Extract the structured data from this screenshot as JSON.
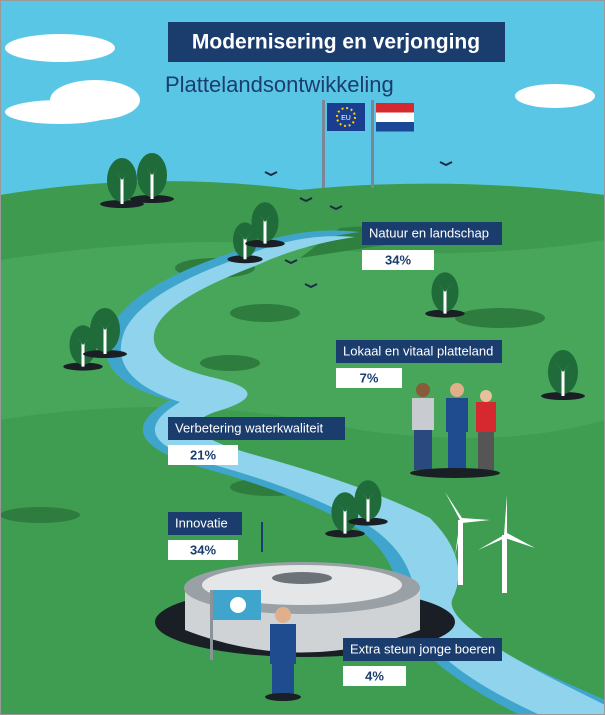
{
  "header": {
    "title": "Modernisering en verjonging",
    "subtitle": "Plattelandsontwikkeling",
    "flag_text": "EU"
  },
  "items": [
    {
      "label": "Natuur en landschap",
      "value": "34%"
    },
    {
      "label": "Lokaal en vitaal platteland",
      "value": "7%"
    },
    {
      "label": "Verbetering waterkwaliteit",
      "value": "21%"
    },
    {
      "label": "Innovatie",
      "value": "34%"
    },
    {
      "label": "Extra steun jonge boeren",
      "value": "4%"
    }
  ]
}
